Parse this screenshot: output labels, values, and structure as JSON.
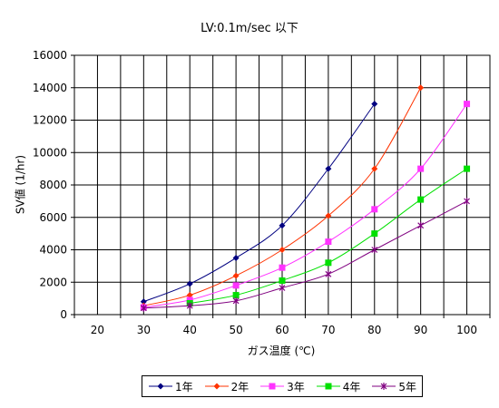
{
  "chart_data": {
    "type": "line",
    "title": "LV:0.1m/sec 以下",
    "xlabel": "ガス温度 (℃)",
    "ylabel": "SV値 (1/hr)",
    "categories": [
      20,
      30,
      40,
      50,
      60,
      70,
      80,
      90,
      100
    ],
    "ylim": [
      0,
      16000
    ],
    "yticks": [
      0,
      2000,
      4000,
      6000,
      8000,
      10000,
      12000,
      14000,
      16000
    ],
    "grid": true,
    "legend_position": "bottom",
    "series": [
      {
        "name": "1年",
        "color": "#000080",
        "marker": "diamond",
        "x": [
          30,
          40,
          50,
          60,
          70,
          80
        ],
        "values": [
          800,
          1900,
          3500,
          5500,
          9000,
          13000
        ]
      },
      {
        "name": "2年",
        "color": "#ff3300",
        "marker": "diamond",
        "x": [
          30,
          40,
          50,
          60,
          70,
          80,
          90
        ],
        "values": [
          550,
          1200,
          2400,
          4000,
          6100,
          9000,
          14000
        ]
      },
      {
        "name": "3年",
        "color": "#ff33ff",
        "marker": "square",
        "x": [
          30,
          40,
          50,
          60,
          70,
          80,
          90,
          100
        ],
        "values": [
          450,
          900,
          1800,
          2900,
          4500,
          6500,
          9000,
          13000
        ]
      },
      {
        "name": "4年",
        "color": "#00e000",
        "marker": "square",
        "x": [
          40,
          50,
          60,
          70,
          80,
          90,
          100
        ],
        "values": [
          700,
          1200,
          2100,
          3200,
          5000,
          7100,
          9000
        ]
      },
      {
        "name": "5年",
        "color": "#800080",
        "marker": "star",
        "x": [
          30,
          40,
          50,
          60,
          70,
          80,
          90,
          100
        ],
        "values": [
          400,
          550,
          850,
          1650,
          2500,
          4000,
          5500,
          7000
        ]
      }
    ]
  }
}
